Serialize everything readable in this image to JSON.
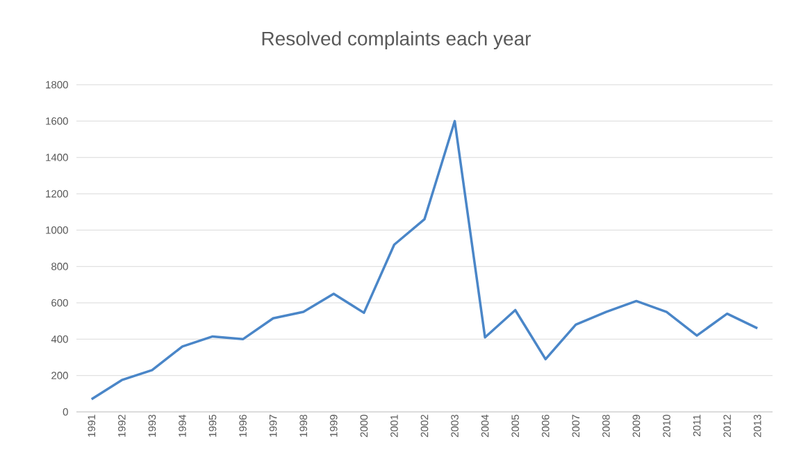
{
  "chart_data": {
    "type": "line",
    "title": "Resolved complaints each year",
    "categories": [
      "1991",
      "1992",
      "1993",
      "1994",
      "1995",
      "1996",
      "1997",
      "1998",
      "1999",
      "2000",
      "2001",
      "2002",
      "2003",
      "2004",
      "2005",
      "2006",
      "2007",
      "2008",
      "2009",
      "2010",
      "2011",
      "2012",
      "2013"
    ],
    "values": [
      70,
      175,
      230,
      360,
      415,
      400,
      515,
      550,
      650,
      545,
      920,
      1060,
      1600,
      410,
      560,
      290,
      480,
      550,
      610,
      550,
      420,
      540,
      460
    ],
    "color": "#4a86c8",
    "ylim": [
      0,
      1800
    ],
    "yticks": [
      0,
      200,
      400,
      600,
      800,
      1000,
      1200,
      1400,
      1600,
      1800
    ],
    "grid": "y"
  }
}
